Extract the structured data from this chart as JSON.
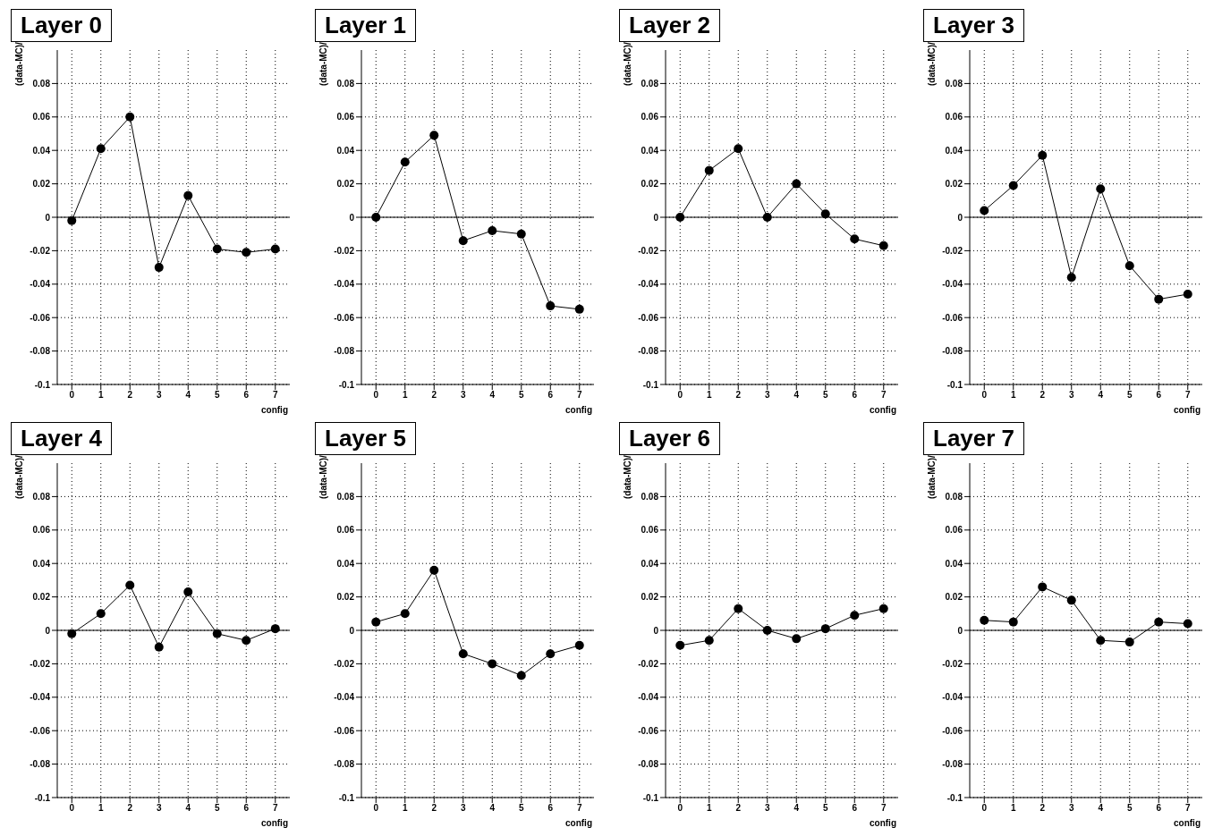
{
  "chart_data": [
    {
      "type": "line",
      "title": "Layer 0",
      "xlabel": "config",
      "ylabel": "(data-MC)/",
      "x": [
        0,
        1,
        2,
        3,
        4,
        5,
        6,
        7
      ],
      "series": [
        {
          "color": "#000000",
          "values": [
            -0.002,
            0.041,
            0.06,
            -0.03,
            0.013,
            -0.019,
            -0.021,
            -0.019
          ]
        }
      ],
      "xlim": [
        -0.5,
        7.5
      ],
      "xticks": [
        0,
        1,
        2,
        3,
        4,
        5,
        6,
        7
      ],
      "ylim": [
        -0.1,
        0.1
      ],
      "yticks": [
        -0.1,
        -0.08,
        -0.06,
        -0.04,
        -0.02,
        0,
        0.02,
        0.04,
        0.06,
        0.08
      ],
      "grid": true,
      "marker": "circle",
      "line_style": "solid",
      "ref_lines": [
        {
          "axis": "y",
          "value": 0
        }
      ]
    },
    {
      "type": "line",
      "title": "Layer 1",
      "xlabel": "config",
      "ylabel": "(data-MC)/",
      "x": [
        0,
        1,
        2,
        3,
        4,
        5,
        6,
        7
      ],
      "series": [
        {
          "color": "#000000",
          "values": [
            0.0,
            0.033,
            0.049,
            -0.014,
            -0.008,
            -0.01,
            -0.053,
            -0.055
          ]
        }
      ],
      "xlim": [
        -0.5,
        7.5
      ],
      "xticks": [
        0,
        1,
        2,
        3,
        4,
        5,
        6,
        7
      ],
      "ylim": [
        -0.1,
        0.1
      ],
      "yticks": [
        -0.1,
        -0.08,
        -0.06,
        -0.04,
        -0.02,
        0,
        0.02,
        0.04,
        0.06,
        0.08
      ],
      "grid": true,
      "marker": "circle",
      "line_style": "solid",
      "ref_lines": [
        {
          "axis": "y",
          "value": 0
        }
      ]
    },
    {
      "type": "line",
      "title": "Layer 2",
      "xlabel": "config",
      "ylabel": "(data-MC)/",
      "x": [
        0,
        1,
        2,
        3,
        4,
        5,
        6,
        7
      ],
      "series": [
        {
          "color": "#000000",
          "values": [
            0.0,
            0.028,
            0.041,
            0.0,
            0.02,
            0.002,
            -0.013,
            -0.017
          ]
        }
      ],
      "xlim": [
        -0.5,
        7.5
      ],
      "xticks": [
        0,
        1,
        2,
        3,
        4,
        5,
        6,
        7
      ],
      "ylim": [
        -0.1,
        0.1
      ],
      "yticks": [
        -0.1,
        -0.08,
        -0.06,
        -0.04,
        -0.02,
        0,
        0.02,
        0.04,
        0.06,
        0.08
      ],
      "grid": true,
      "marker": "circle",
      "line_style": "solid",
      "ref_lines": [
        {
          "axis": "y",
          "value": 0
        }
      ]
    },
    {
      "type": "line",
      "title": "Layer 3",
      "xlabel": "config",
      "ylabel": "(data-MC)/",
      "x": [
        0,
        1,
        2,
        3,
        4,
        5,
        6,
        7
      ],
      "series": [
        {
          "color": "#000000",
          "values": [
            0.004,
            0.019,
            0.037,
            -0.036,
            0.017,
            -0.029,
            -0.049,
            -0.046
          ]
        }
      ],
      "xlim": [
        -0.5,
        7.5
      ],
      "xticks": [
        0,
        1,
        2,
        3,
        4,
        5,
        6,
        7
      ],
      "ylim": [
        -0.1,
        0.1
      ],
      "yticks": [
        -0.1,
        -0.08,
        -0.06,
        -0.04,
        -0.02,
        0,
        0.02,
        0.04,
        0.06,
        0.08
      ],
      "grid": true,
      "marker": "circle",
      "line_style": "solid",
      "ref_lines": [
        {
          "axis": "y",
          "value": 0
        }
      ]
    },
    {
      "type": "line",
      "title": "Layer 4",
      "xlabel": "config",
      "ylabel": "(data-MC)/",
      "x": [
        0,
        1,
        2,
        3,
        4,
        5,
        6,
        7
      ],
      "series": [
        {
          "color": "#000000",
          "values": [
            -0.002,
            0.01,
            0.027,
            -0.01,
            0.023,
            -0.002,
            -0.006,
            0.001
          ]
        }
      ],
      "xlim": [
        -0.5,
        7.5
      ],
      "xticks": [
        0,
        1,
        2,
        3,
        4,
        5,
        6,
        7
      ],
      "ylim": [
        -0.1,
        0.1
      ],
      "yticks": [
        -0.1,
        -0.08,
        -0.06,
        -0.04,
        -0.02,
        0,
        0.02,
        0.04,
        0.06,
        0.08
      ],
      "grid": true,
      "marker": "circle",
      "line_style": "solid",
      "ref_lines": [
        {
          "axis": "y",
          "value": 0
        }
      ]
    },
    {
      "type": "line",
      "title": "Layer 5",
      "xlabel": "config",
      "ylabel": "(data-MC)/",
      "x": [
        0,
        1,
        2,
        3,
        4,
        5,
        6,
        7
      ],
      "series": [
        {
          "color": "#000000",
          "values": [
            0.005,
            0.01,
            0.036,
            -0.014,
            -0.02,
            -0.027,
            -0.014,
            -0.009
          ]
        }
      ],
      "xlim": [
        -0.5,
        7.5
      ],
      "xticks": [
        0,
        1,
        2,
        3,
        4,
        5,
        6,
        7
      ],
      "ylim": [
        -0.1,
        0.1
      ],
      "yticks": [
        -0.1,
        -0.08,
        -0.06,
        -0.04,
        -0.02,
        0,
        0.02,
        0.04,
        0.06,
        0.08
      ],
      "grid": true,
      "marker": "circle",
      "line_style": "solid",
      "ref_lines": [
        {
          "axis": "y",
          "value": 0
        }
      ]
    },
    {
      "type": "line",
      "title": "Layer 6",
      "xlabel": "config",
      "ylabel": "(data-MC)/",
      "x": [
        0,
        1,
        2,
        3,
        4,
        5,
        6,
        7
      ],
      "series": [
        {
          "color": "#000000",
          "values": [
            -0.009,
            -0.006,
            0.013,
            0.0,
            -0.005,
            0.001,
            0.009,
            0.013
          ]
        }
      ],
      "xlim": [
        -0.5,
        7.5
      ],
      "xticks": [
        0,
        1,
        2,
        3,
        4,
        5,
        6,
        7
      ],
      "ylim": [
        -0.1,
        0.1
      ],
      "yticks": [
        -0.1,
        -0.08,
        -0.06,
        -0.04,
        -0.02,
        0,
        0.02,
        0.04,
        0.06,
        0.08
      ],
      "grid": true,
      "marker": "circle",
      "line_style": "solid",
      "ref_lines": [
        {
          "axis": "y",
          "value": 0
        }
      ]
    },
    {
      "type": "line",
      "title": "Layer 7",
      "xlabel": "config",
      "ylabel": "(data-MC)/",
      "x": [
        0,
        1,
        2,
        3,
        4,
        5,
        6,
        7
      ],
      "series": [
        {
          "color": "#000000",
          "values": [
            0.006,
            0.005,
            0.026,
            0.018,
            -0.006,
            -0.007,
            0.005,
            0.004
          ]
        }
      ],
      "xlim": [
        -0.5,
        7.5
      ],
      "xticks": [
        0,
        1,
        2,
        3,
        4,
        5,
        6,
        7
      ],
      "ylim": [
        -0.1,
        0.1
      ],
      "yticks": [
        -0.1,
        -0.08,
        -0.06,
        -0.04,
        -0.02,
        0,
        0.02,
        0.04,
        0.06,
        0.08
      ],
      "grid": true,
      "marker": "circle",
      "line_style": "solid",
      "ref_lines": [
        {
          "axis": "y",
          "value": 0
        }
      ]
    }
  ]
}
